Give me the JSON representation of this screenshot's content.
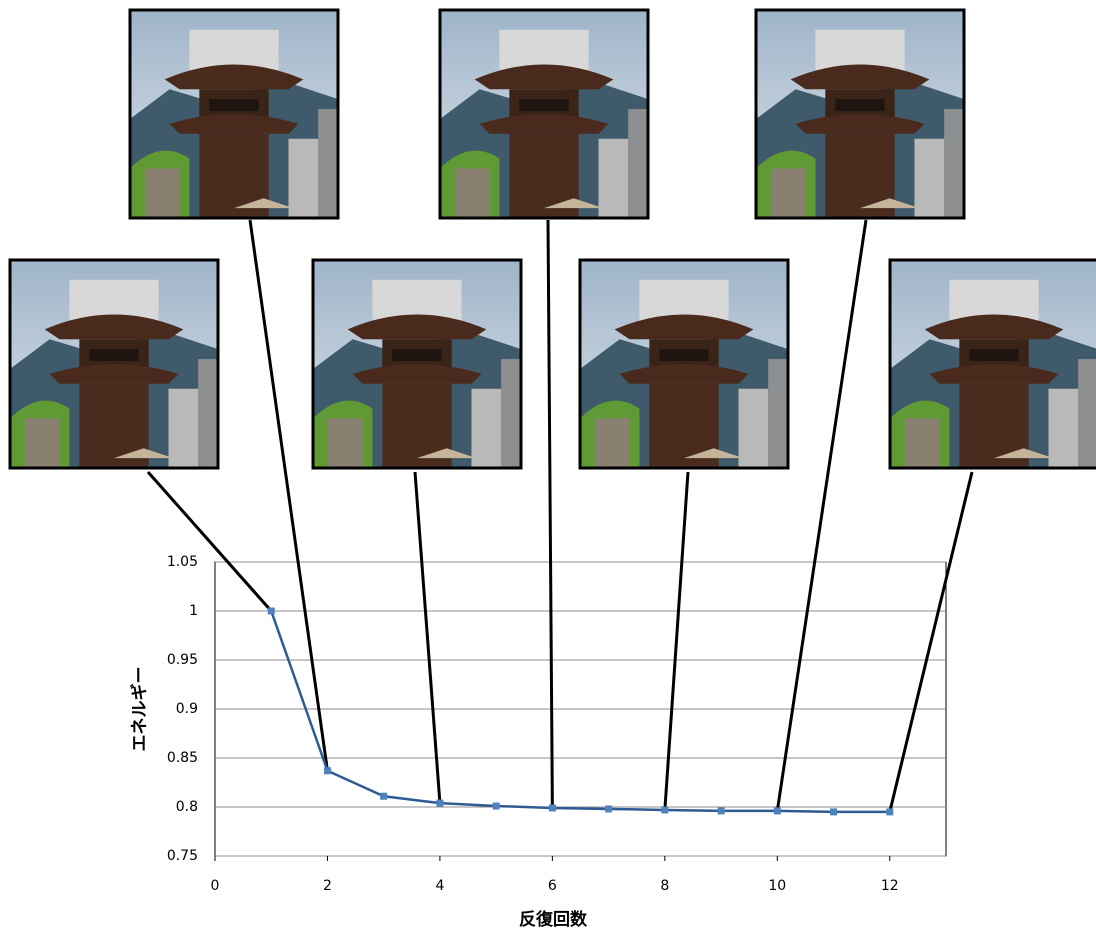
{
  "chart_data": {
    "type": "line",
    "x_label": "反復回数",
    "y_label": "エネルギー",
    "x": [
      1,
      2,
      3,
      4,
      5,
      6,
      7,
      8,
      9,
      10,
      11,
      12
    ],
    "series": [
      {
        "name": "エネルギー",
        "color": "#2e5b94",
        "marker_color": "#4f81bd",
        "values": [
          1,
          0.837,
          0.811,
          0.804,
          0.801,
          0.799,
          0.798,
          0.797,
          0.796,
          0.796,
          0.795,
          0.795
        ]
      }
    ],
    "xlim": [
      0,
      13
    ],
    "xticks": [
      0,
      2,
      4,
      6,
      8,
      10,
      12
    ],
    "ylim": [
      0.75,
      1.05
    ],
    "yticks": [
      0.75,
      0.8,
      0.85,
      0.9,
      0.95,
      1,
      1.05
    ],
    "grid": true
  }
}
